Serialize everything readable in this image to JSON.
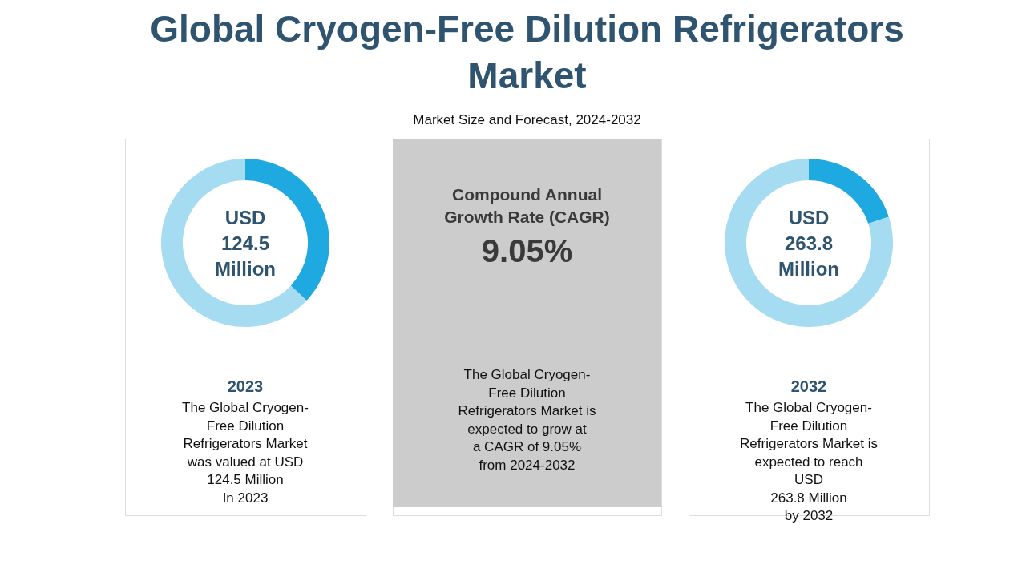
{
  "chart_data": [
    {
      "type": "donut",
      "title": "Global Cryogen-Free Dilution Refrigerators Market",
      "subtitle": "Market Size and Forecast, 2024-2032",
      "categories": [
        null,
        null
      ],
      "values": [
        37,
        63
      ],
      "colors": [
        "#1ea9e1",
        "#a6dcf2"
      ],
      "annotations": [
        "USD\n124.5\nMillion",
        "2023",
        "The Global Cryogen-\nFree Dilution\nRefrigerators Market\nwas valued at USD\n124.5 Million\nIn 2023"
      ]
    },
    {
      "type": "other",
      "annotations": [
        "Compound Annual\nGrowth Rate (CAGR)",
        "9.05%",
        "The Global Cryogen-\nFree Dilution\nRefrigerators Market is\nexpected to grow at\na CAGR of 9.05%\nfrom 2024-2032"
      ]
    },
    {
      "type": "donut",
      "categories": [
        null,
        null
      ],
      "values": [
        20,
        80
      ],
      "colors": [
        "#1ea9e1",
        "#a6dcf2"
      ],
      "annotations": [
        "USD\n263.8\nMillion",
        "2032",
        "The Global Cryogen-\nFree Dilution\nRefrigerators Market is\nexpected to reach\nUSD\n263.8 Million\nby 2032"
      ]
    }
  ]
}
